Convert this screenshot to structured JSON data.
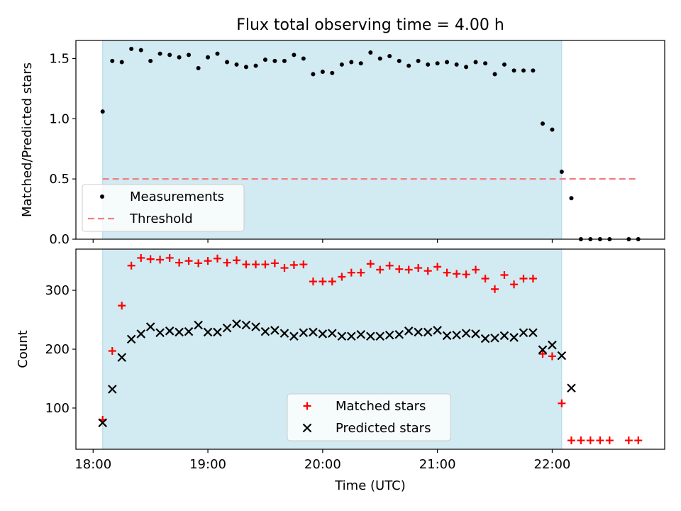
{
  "chart_data": [
    {
      "type": "scatter",
      "title": "Flux total observing time = 4.00 h",
      "xlabel": "",
      "ylabel": "Matched/Predicted stars",
      "ylim": [
        0,
        1.65
      ],
      "yticks": [
        0.0,
        0.5,
        1.0,
        1.5
      ],
      "ytick_labels": [
        "0.0",
        "0.5",
        "1.0",
        "1.5"
      ],
      "xlim_hours": [
        17.85,
        22.98
      ],
      "xticks_hours": [
        18,
        19,
        20,
        21,
        22
      ],
      "shaded_span_hours": [
        18.083,
        22.083
      ],
      "shade_color": "#add8e6",
      "legend_position": "lower-left",
      "series": [
        {
          "name": "Measurements",
          "color": "#000000",
          "marker": "dot",
          "x": [
            18.083,
            18.167,
            18.25,
            18.333,
            18.417,
            18.5,
            18.583,
            18.667,
            18.75,
            18.833,
            18.917,
            19.0,
            19.083,
            19.167,
            19.25,
            19.333,
            19.417,
            19.5,
            19.583,
            19.667,
            19.75,
            19.833,
            19.917,
            20.0,
            20.083,
            20.167,
            20.25,
            20.333,
            20.417,
            20.5,
            20.583,
            20.667,
            20.75,
            20.833,
            20.917,
            21.0,
            21.083,
            21.167,
            21.25,
            21.333,
            21.417,
            21.5,
            21.583,
            21.667,
            21.75,
            21.833,
            21.917,
            22.0,
            22.083,
            22.167,
            22.25,
            22.333,
            22.417,
            22.5,
            22.667,
            22.75
          ],
          "y": [
            1.06,
            1.48,
            1.47,
            1.58,
            1.57,
            1.48,
            1.54,
            1.53,
            1.51,
            1.53,
            1.42,
            1.51,
            1.54,
            1.47,
            1.45,
            1.43,
            1.44,
            1.49,
            1.48,
            1.48,
            1.53,
            1.5,
            1.37,
            1.39,
            1.38,
            1.45,
            1.47,
            1.46,
            1.55,
            1.5,
            1.52,
            1.48,
            1.44,
            1.48,
            1.45,
            1.46,
            1.47,
            1.45,
            1.43,
            1.47,
            1.46,
            1.37,
            1.45,
            1.4,
            1.4,
            1.4,
            0.96,
            0.91,
            0.56,
            0.34,
            0.0,
            0.0,
            0.0,
            0.0,
            0.0,
            0.0
          ]
        },
        {
          "name": "Threshold",
          "color": "#f08080",
          "style": "dashed",
          "x": [
            18.083,
            22.75
          ],
          "y": [
            0.5,
            0.5
          ]
        }
      ]
    },
    {
      "type": "scatter",
      "title": "",
      "xlabel": "Time (UTC)",
      "ylabel": "Count",
      "ylim": [
        30,
        370
      ],
      "yticks": [
        100,
        200,
        300
      ],
      "ytick_labels": [
        "100",
        "200",
        "300"
      ],
      "xlim_hours": [
        17.85,
        22.98
      ],
      "xticks_hours": [
        18,
        19,
        20,
        21,
        22
      ],
      "xtick_labels": [
        "18:00",
        "19:00",
        "20:00",
        "21:00",
        "22:00"
      ],
      "shaded_span_hours": [
        18.083,
        22.083
      ],
      "shade_color": "#add8e6",
      "legend_position": "lower-center",
      "series": [
        {
          "name": "Matched stars",
          "color": "#ff0000",
          "marker": "plus",
          "x": [
            18.083,
            18.167,
            18.25,
            18.333,
            18.417,
            18.5,
            18.583,
            18.667,
            18.75,
            18.833,
            18.917,
            19.0,
            19.083,
            19.167,
            19.25,
            19.333,
            19.417,
            19.5,
            19.583,
            19.667,
            19.75,
            19.833,
            19.917,
            20.0,
            20.083,
            20.167,
            20.25,
            20.333,
            20.417,
            20.5,
            20.583,
            20.667,
            20.75,
            20.833,
            20.917,
            21.0,
            21.083,
            21.167,
            21.25,
            21.333,
            21.417,
            21.5,
            21.583,
            21.667,
            21.75,
            21.833,
            21.917,
            22.0,
            22.083,
            22.167,
            22.25,
            22.333,
            22.417,
            22.5,
            22.667,
            22.75
          ],
          "y": [
            80,
            197,
            274,
            342,
            355,
            353,
            352,
            355,
            347,
            350,
            346,
            350,
            354,
            347,
            351,
            344,
            344,
            344,
            346,
            338,
            343,
            344,
            315,
            315,
            315,
            323,
            330,
            330,
            345,
            335,
            342,
            336,
            335,
            338,
            333,
            340,
            330,
            328,
            327,
            335,
            320,
            302,
            326,
            310,
            320,
            320,
            192,
            188,
            108,
            45,
            45,
            45,
            45,
            45,
            45,
            45
          ]
        },
        {
          "name": "Predicted stars",
          "color": "#000000",
          "marker": "x",
          "x": [
            18.083,
            18.167,
            18.25,
            18.333,
            18.417,
            18.5,
            18.583,
            18.667,
            18.75,
            18.833,
            18.917,
            19.0,
            19.083,
            19.167,
            19.25,
            19.333,
            19.417,
            19.5,
            19.583,
            19.667,
            19.75,
            19.833,
            19.917,
            20.0,
            20.083,
            20.167,
            20.25,
            20.333,
            20.417,
            20.5,
            20.583,
            20.667,
            20.75,
            20.833,
            20.917,
            21.0,
            21.083,
            21.167,
            21.25,
            21.333,
            21.417,
            21.5,
            21.583,
            21.667,
            21.75,
            21.833,
            21.917,
            22.0,
            22.083,
            22.167
          ],
          "y": [
            75,
            132,
            186,
            217,
            226,
            238,
            228,
            231,
            229,
            230,
            241,
            229,
            229,
            236,
            243,
            241,
            238,
            230,
            232,
            227,
            222,
            228,
            229,
            226,
            227,
            222,
            222,
            225,
            222,
            222,
            224,
            225,
            231,
            229,
            229,
            232,
            223,
            224,
            227,
            226,
            218,
            219,
            223,
            220,
            228,
            228,
            199,
            207,
            189,
            134
          ]
        }
      ]
    }
  ]
}
